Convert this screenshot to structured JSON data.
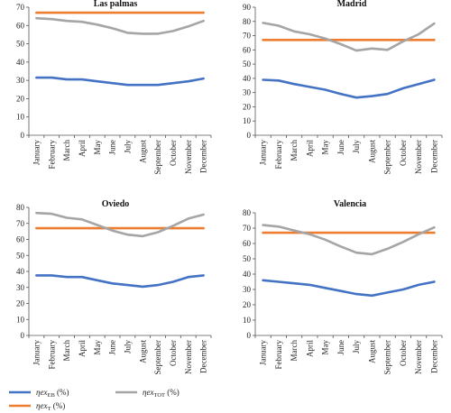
{
  "chart_data": [
    {
      "type": "line",
      "title": "Las palmas",
      "categories": [
        "January",
        "February",
        "March",
        "April",
        "May",
        "June",
        "July",
        "August",
        "September",
        "October",
        "November",
        "December"
      ],
      "ylim": [
        0,
        70
      ],
      "yticks": [
        "0",
        "10",
        "20",
        "30",
        "40",
        "50",
        "60",
        "70"
      ],
      "series": [
        {
          "key": "eb",
          "values": [
            31.5,
            31.5,
            30.5,
            30.5,
            29.5,
            28.5,
            27.5,
            27.5,
            27.5,
            28.5,
            29.5,
            31
          ]
        },
        {
          "key": "t",
          "values": [
            67,
            67,
            67,
            67,
            67,
            67,
            67,
            67,
            67,
            67,
            67,
            67
          ]
        },
        {
          "key": "tot",
          "values": [
            64,
            63.5,
            62.5,
            62,
            60.5,
            58.5,
            56,
            55.5,
            55.5,
            57,
            59.5,
            62.5
          ]
        }
      ]
    },
    {
      "type": "line",
      "title": "Madrid",
      "categories": [
        "January",
        "February",
        "March",
        "April",
        "May",
        "June",
        "July",
        "August",
        "September",
        "October",
        "November",
        "December"
      ],
      "ylim": [
        0,
        90
      ],
      "yticks": [
        "0",
        "10",
        "20",
        "30",
        "40",
        "50",
        "60",
        "70",
        "80",
        "90"
      ],
      "series": [
        {
          "key": "eb",
          "values": [
            39,
            38.5,
            36,
            34,
            32,
            29,
            26.5,
            27.5,
            29,
            33,
            36,
            39
          ]
        },
        {
          "key": "t",
          "values": [
            67,
            67,
            67,
            67,
            67,
            67,
            67,
            67,
            67,
            67,
            67,
            67
          ]
        },
        {
          "key": "tot",
          "values": [
            79,
            77,
            73,
            71,
            68,
            64,
            59.5,
            61,
            60,
            66,
            71,
            78.5
          ]
        }
      ]
    },
    {
      "type": "line",
      "title": "Oviedo",
      "categories": [
        "January",
        "February",
        "March",
        "April",
        "May",
        "June",
        "July",
        "August",
        "September",
        "October",
        "November",
        "December"
      ],
      "ylim": [
        0,
        80
      ],
      "yticks": [
        "0",
        "10",
        "20",
        "30",
        "40",
        "50",
        "60",
        "70",
        "80"
      ],
      "series": [
        {
          "key": "eb",
          "values": [
            37.5,
            37.5,
            36.5,
            36.5,
            34.5,
            32.5,
            31.5,
            30.5,
            31.5,
            33.5,
            36.5,
            37.5
          ]
        },
        {
          "key": "t",
          "values": [
            67,
            67,
            67,
            67,
            67,
            67,
            67,
            67,
            67,
            67,
            67,
            67
          ]
        },
        {
          "key": "tot",
          "values": [
            76.5,
            76,
            73.5,
            72.5,
            69,
            65.5,
            63,
            62,
            64.5,
            68.5,
            73,
            75.5
          ]
        }
      ]
    },
    {
      "type": "line",
      "title": "Valencia",
      "categories": [
        "January",
        "February",
        "March",
        "April",
        "May",
        "June",
        "July",
        "August",
        "September",
        "October",
        "November",
        "December"
      ],
      "ylim": [
        0,
        80
      ],
      "yticks": [
        "0",
        "10",
        "20",
        "30",
        "40",
        "50",
        "60",
        "70",
        "80"
      ],
      "series": [
        {
          "key": "eb",
          "values": [
            36,
            35,
            34,
            33,
            31,
            29,
            27,
            26,
            28,
            30,
            33,
            35
          ]
        },
        {
          "key": "t",
          "values": [
            67,
            67,
            67,
            67,
            67,
            67,
            67,
            67,
            67,
            67,
            67,
            67
          ]
        },
        {
          "key": "tot",
          "values": [
            72,
            71,
            68.5,
            66,
            62.5,
            58,
            54,
            53,
            56.5,
            61,
            66,
            70.5
          ]
        }
      ]
    }
  ],
  "legend": [
    {
      "key": "eb",
      "prefix": "ηex",
      "sub": "EB",
      "suffix": " (%)",
      "color": "#4472C4"
    },
    {
      "key": "tot",
      "prefix": "ηex",
      "sub": "TOT",
      "suffix": " (%)",
      "color": "#A5A5A5"
    },
    {
      "key": "t",
      "prefix": "ηex",
      "sub": "T",
      "suffix": " (%)",
      "color": "#ED7D31"
    }
  ]
}
